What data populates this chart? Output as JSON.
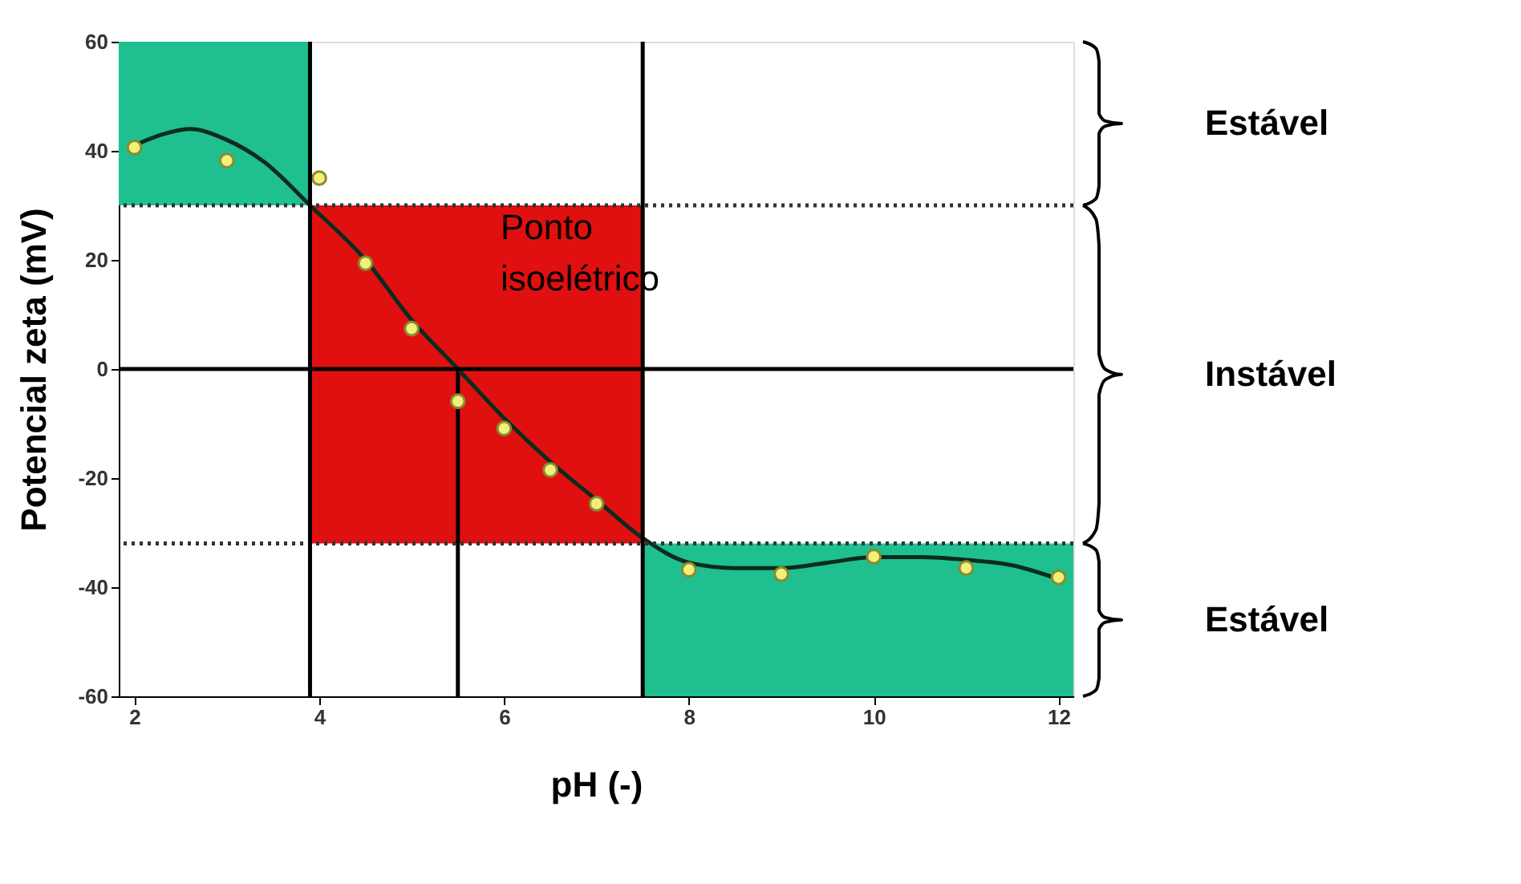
{
  "chart_data": {
    "type": "scatter",
    "xlabel": "pH (-)",
    "ylabel": "Potencial zeta (mV)",
    "xlim": [
      1.83,
      12.16
    ],
    "ylim": [
      -60,
      60
    ],
    "xticks": [
      2,
      4,
      6,
      8,
      10,
      12
    ],
    "yticks": [
      -60,
      -40,
      -20,
      0,
      20,
      40,
      60
    ],
    "grid": false,
    "series": [
      {
        "type": "line",
        "color": "#000000",
        "x": [
          5.5,
          5.5
        ],
        "values": [
          -60,
          0
        ]
      },
      {
        "type": "line",
        "color": "#0d2b1c",
        "x": [
          2,
          2.3,
          2.6,
          3,
          3.4,
          3.9,
          4.5,
          5,
          5.5,
          6,
          6.5,
          7,
          7.5,
          8,
          8.5,
          9,
          9.5,
          10,
          10.5,
          11,
          11.5,
          12
        ],
        "values": [
          41,
          43,
          44,
          42,
          38,
          30,
          20,
          9,
          0,
          -9,
          -17,
          -24,
          -31,
          -35.5,
          -36.5,
          -36.5,
          -35.5,
          -34.5,
          -34.5,
          -35,
          -36,
          -38.5
        ]
      },
      {
        "color": "#f2f07a",
        "marker": "circle",
        "x": [
          2,
          3,
          4,
          4.5,
          5,
          5.5,
          6,
          6.5,
          7,
          8,
          9,
          10,
          11,
          12
        ],
        "values": [
          40.6,
          38.2,
          35,
          19.4,
          7.4,
          -5.9,
          -10.9,
          -18.5,
          -24.7,
          -36.8,
          -37.6,
          -34.4,
          -36.5,
          -38.2
        ]
      }
    ],
    "ref_lines": [
      {
        "axis": "y",
        "value": 30,
        "line_style": "dotted",
        "color": "#333333"
      },
      {
        "axis": "y",
        "value": -32,
        "line_style": "dotted",
        "color": "#333333"
      },
      {
        "axis": "y",
        "value": 0,
        "line_style": "solid",
        "color": "#000000"
      },
      {
        "axis": "x",
        "value": 3.9,
        "line_style": "solid",
        "color": "#000000"
      },
      {
        "axis": "x",
        "value": 7.5,
        "line_style": "solid",
        "color": "#000000"
      }
    ],
    "bands": [
      {
        "axis": "y",
        "from": 30,
        "to": 60,
        "color": "#1fbf8f"
      },
      {
        "axis": "y",
        "from": -32,
        "to": 30,
        "color": "#e01010"
      },
      {
        "axis": "y",
        "from": -60,
        "to": -32,
        "color": "#1fbf8f"
      }
    ],
    "annotations": [
      "Ponto\nisoelétrico",
      "Estável",
      "Instável",
      "Estável"
    ]
  }
}
